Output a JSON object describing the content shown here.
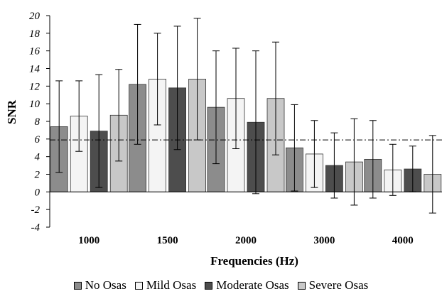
{
  "chart_data": {
    "type": "bar",
    "title": "",
    "xlabel": "Frequencies (Hz)",
    "ylabel": "SNR",
    "categories": [
      "1000",
      "1500",
      "2000",
      "3000",
      "4000"
    ],
    "ylim": [
      -4,
      20
    ],
    "yticks": [
      "20",
      "18",
      "16",
      "14",
      "12",
      "10",
      "8",
      "6",
      "4",
      "2",
      "0",
      "-2",
      "-4"
    ],
    "reference_line": 5.9,
    "error_bars": "symmetric",
    "legend_position": "bottom",
    "grid": false,
    "series": [
      {
        "name": "No Osas",
        "color": "#8c8c8c",
        "values": [
          7.4,
          12.2,
          9.6,
          5.0,
          3.7
        ],
        "errors": [
          5.2,
          6.8,
          6.4,
          4.9,
          4.4
        ]
      },
      {
        "name": "Mild Osas",
        "color": "#f4f4f4",
        "values": [
          8.6,
          12.8,
          10.6,
          4.3,
          2.5
        ],
        "errors": [
          4.0,
          5.2,
          5.7,
          3.8,
          2.9
        ]
      },
      {
        "name": "Moderate Osas",
        "color": "#4d4d4d",
        "values": [
          6.9,
          11.8,
          7.9,
          3.0,
          2.6
        ],
        "errors": [
          6.4,
          7.0,
          8.1,
          3.7,
          2.6
        ]
      },
      {
        "name": "Severe Osas",
        "color": "#c8c8c8",
        "values": [
          8.7,
          12.8,
          10.6,
          3.4,
          2.0
        ],
        "errors": [
          5.2,
          6.9,
          6.4,
          4.9,
          4.4
        ]
      }
    ]
  }
}
